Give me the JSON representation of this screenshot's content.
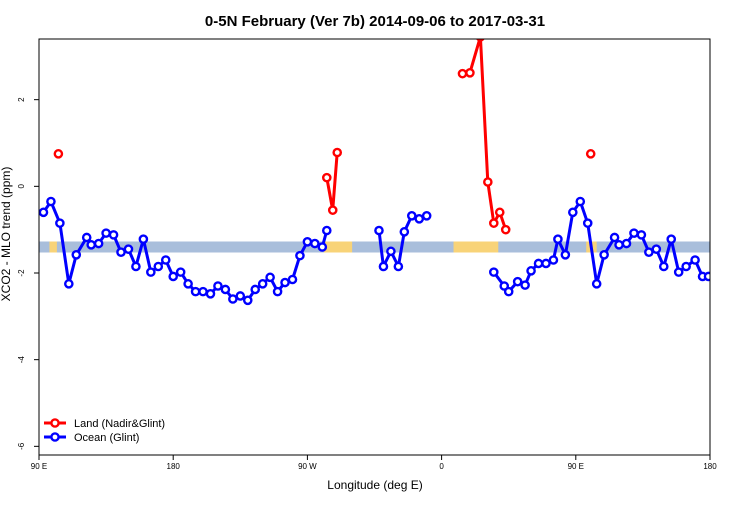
{
  "chart_data": {
    "type": "line",
    "title": "0-5N February (Ver 7b)   2014-09-06 to 2017-03-31",
    "xlabel": "Longitude (deg E)",
    "ylabel": "XCO2 - MLO trend (ppm)",
    "xlim": [
      90,
      540
    ],
    "ylim": [
      -6.2,
      3.4
    ],
    "x_ticks": [
      {
        "value": 90,
        "label": "90 E"
      },
      {
        "value": 180,
        "label": "180"
      },
      {
        "value": 270,
        "label": "90 W"
      },
      {
        "value": 360,
        "label": "0"
      },
      {
        "value": 450,
        "label": "90 E"
      },
      {
        "value": 540,
        "label": "180"
      }
    ],
    "y_ticks": [
      {
        "value": 2,
        "label": "2"
      },
      {
        "value": 0,
        "label": "0"
      },
      {
        "value": -2,
        "label": "-2"
      },
      {
        "value": -4,
        "label": "-4"
      },
      {
        "value": -6,
        "label": "-6"
      }
    ],
    "band": {
      "y": -1.4,
      "colors": {
        "ocean": "#a9bedb",
        "land": "#f8d378"
      },
      "land_segments": [
        [
          97,
          102
        ],
        [
          281,
          300
        ],
        [
          368,
          398
        ],
        [
          457,
          464
        ]
      ]
    },
    "legend": {
      "position": "bottom-left"
    },
    "series": [
      {
        "name": "Land (Nadir&Glint)",
        "color": "#ff0000",
        "segments": [
          [
            [
              103,
              0.75
            ]
          ],
          [
            [
              283,
              0.2
            ],
            [
              287,
              -0.55
            ],
            [
              290,
              0.78
            ]
          ],
          [
            [
              374,
              2.6
            ],
            [
              379,
              2.62
            ],
            [
              386,
              3.45
            ],
            [
              391,
              0.1
            ],
            [
              395,
              -0.85
            ],
            [
              399,
              -0.6
            ],
            [
              403,
              -1.0
            ]
          ],
          [
            [
              460,
              0.75
            ]
          ]
        ]
      },
      {
        "name": "Ocean (Glint)",
        "color": "#0000ff",
        "segments": [
          [
            [
              93,
              -0.6
            ],
            [
              98,
              -0.35
            ],
            [
              104,
              -0.85
            ],
            [
              110,
              -2.25
            ],
            [
              115,
              -1.58
            ],
            [
              122,
              -1.18
            ],
            [
              125,
              -1.35
            ],
            [
              130,
              -1.32
            ],
            [
              135,
              -1.08
            ],
            [
              140,
              -1.12
            ],
            [
              145,
              -1.52
            ],
            [
              150,
              -1.45
            ],
            [
              155,
              -1.85
            ],
            [
              160,
              -1.22
            ],
            [
              165,
              -1.98
            ],
            [
              170,
              -1.85
            ],
            [
              175,
              -1.7
            ],
            [
              180,
              -2.08
            ],
            [
              185,
              -1.98
            ],
            [
              190,
              -2.25
            ],
            [
              195,
              -2.43
            ],
            [
              200,
              -2.43
            ],
            [
              205,
              -2.48
            ],
            [
              210,
              -2.3
            ],
            [
              215,
              -2.38
            ],
            [
              220,
              -2.6
            ],
            [
              225,
              -2.53
            ],
            [
              230,
              -2.63
            ],
            [
              235,
              -2.38
            ],
            [
              240,
              -2.25
            ],
            [
              245,
              -2.1
            ],
            [
              250,
              -2.43
            ],
            [
              255,
              -2.22
            ],
            [
              260,
              -2.15
            ],
            [
              265,
              -1.6
            ],
            [
              270,
              -1.28
            ],
            [
              275,
              -1.32
            ],
            [
              280,
              -1.4
            ],
            [
              283,
              -1.02
            ]
          ],
          [
            [
              318,
              -1.02
            ],
            [
              321,
              -1.85
            ],
            [
              326,
              -1.5
            ],
            [
              331,
              -1.85
            ],
            [
              335,
              -1.05
            ],
            [
              340,
              -0.68
            ],
            [
              345,
              -0.75
            ],
            [
              350,
              -0.68
            ]
          ],
          [
            [
              395,
              -1.98
            ],
            [
              402,
              -2.3
            ],
            [
              405,
              -2.43
            ],
            [
              411,
              -2.2
            ],
            [
              416,
              -2.28
            ],
            [
              420,
              -1.95
            ],
            [
              425,
              -1.78
            ],
            [
              430,
              -1.78
            ],
            [
              435,
              -1.7
            ],
            [
              438,
              -1.22
            ],
            [
              443,
              -1.58
            ],
            [
              448,
              -0.6
            ],
            [
              453,
              -0.35
            ],
            [
              458,
              -0.85
            ],
            [
              464,
              -2.25
            ],
            [
              469,
              -1.58
            ],
            [
              476,
              -1.18
            ],
            [
              479,
              -1.35
            ],
            [
              484,
              -1.32
            ],
            [
              489,
              -1.08
            ],
            [
              494,
              -1.12
            ],
            [
              499,
              -1.52
            ],
            [
              504,
              -1.45
            ],
            [
              509,
              -1.85
            ],
            [
              514,
              -1.22
            ],
            [
              519,
              -1.98
            ],
            [
              524,
              -1.85
            ],
            [
              530,
              -1.7
            ],
            [
              535,
              -2.08
            ],
            [
              539,
              -2.08
            ]
          ]
        ]
      }
    ]
  }
}
